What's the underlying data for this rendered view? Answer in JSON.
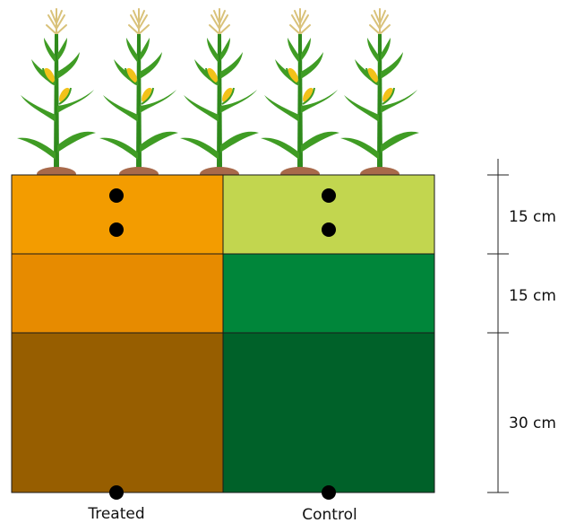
{
  "columns": [
    {
      "label": "Treated",
      "layer_colors": [
        "#f39c00",
        "#e78b00",
        "#975e00"
      ]
    },
    {
      "label": "Control",
      "layer_colors": [
        "#c2d64f",
        "#00863a",
        "#006129"
      ]
    }
  ],
  "depth_scale": {
    "layers": [
      "15 cm",
      "15 cm",
      "30 cm"
    ]
  },
  "plants": {
    "count": 5,
    "stem_color": "#2f8a1c",
    "leaf_color": "#3f9c24",
    "cob_color": "#f2c21a",
    "tassel_color": "#d9c27a",
    "soil_color": "#a8694a"
  }
}
